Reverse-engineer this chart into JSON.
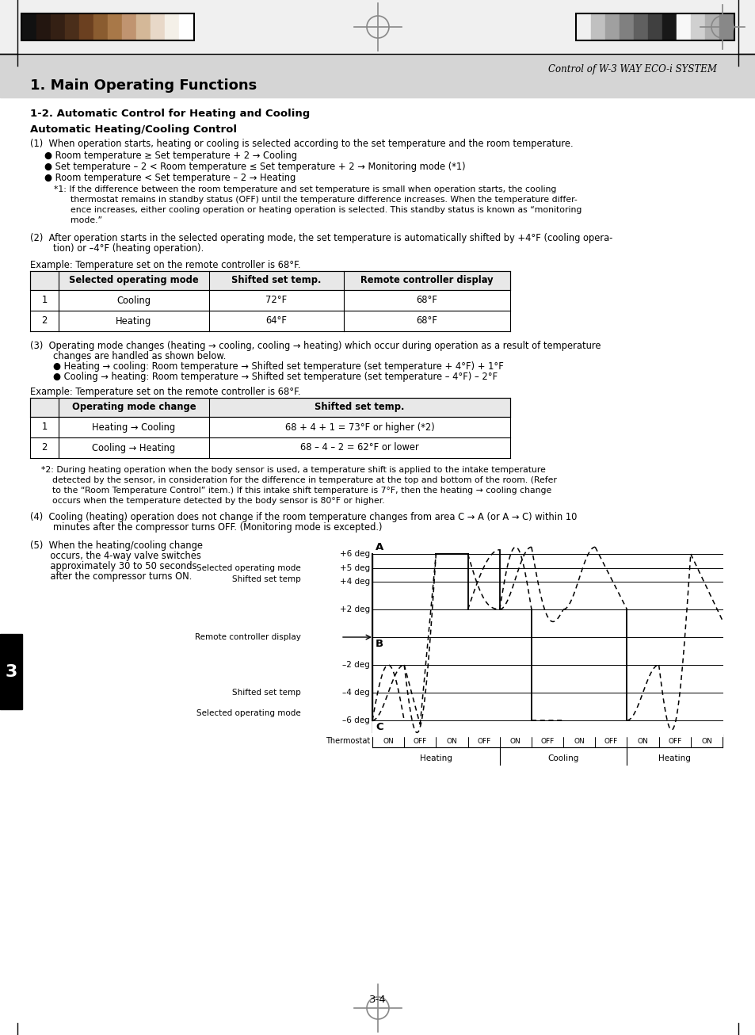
{
  "page_title": "Control of W-3 WAY ECO-i SYSTEM",
  "chapter_title": "1. Main Operating Functions",
  "section_title": "1-2. Automatic Control for Heating and Cooling",
  "subsection_title": "Automatic Heating/Cooling Control",
  "para1_header": "(1)  When operation starts, heating or cooling is selected according to the set temperature and the room temperature.",
  "bullet1": "● Room temperature ≥ Set temperature + 2 → Cooling",
  "bullet2": "● Set temperature – 2 < Room temperature ≤ Set temperature + 2 → Monitoring mode (*1)",
  "bullet3": "● Room temperature < Set temperature – 2 → Heating",
  "note1_lines": [
    "*1: If the difference between the room temperature and set temperature is small when operation starts, the cooling",
    "      thermostat remains in standby status (OFF) until the temperature difference increases. When the temperature differ-",
    "      ence increases, either cooling operation or heating operation is selected. This standby status is known as “monitoring",
    "      mode.”"
  ],
  "para2_lines": [
    "(2)  After operation starts in the selected operating mode, the set temperature is automatically shifted by +4°F (cooling opera-",
    "        tion) or –4°F (heating operation)."
  ],
  "example1": "Example: Temperature set on the remote controller is 68°F.",
  "table1_col_headers": [
    "Selected operating mode",
    "Shifted set temp.",
    "Remote controller display"
  ],
  "table1_rows": [
    [
      "1",
      "Cooling",
      "72°F",
      "68°F"
    ],
    [
      "2",
      "Heating",
      "64°F",
      "68°F"
    ]
  ],
  "para3_lines": [
    "(3)  Operating mode changes (heating → cooling, cooling → heating) which occur during operation as a result of temperature",
    "        changes are handled as shown below.",
    "        ● Heating → cooling: Room temperature → Shifted set temperature (set temperature + 4°F) + 1°F",
    "        ● Cooling → heating: Room temperature → Shifted set temperature (set temperature – 4°F) – 2°F"
  ],
  "example2": "Example: Temperature set on the remote controller is 68°F.",
  "table2_col_headers": [
    "Operating mode change",
    "Shifted set temp."
  ],
  "table2_rows": [
    [
      "1",
      "Heating → Cooling",
      "68 + 4 + 1 = 73°F or higher (*2)"
    ],
    [
      "2",
      "Cooling → Heating",
      "68 – 4 – 2 = 62°F or lower"
    ]
  ],
  "note2_lines": [
    "    *2: During heating operation when the body sensor is used, a temperature shift is applied to the intake temperature",
    "        detected by the sensor, in consideration for the difference in temperature at the top and bottom of the room. (Refer",
    "        to the “Room Temperature Control” item.) If this intake shift temperature is 7°F, then the heating → cooling change",
    "        occurs when the temperature detected by the body sensor is 80°F or higher."
  ],
  "para4_lines": [
    "(4)  Cooling (heating) operation does not change if the room temperature changes from area C → A (or A → C) within 10",
    "        minutes after the compressor turns OFF. (Monitoring mode is excepted.)"
  ],
  "para5_lines": [
    "(5)  When the heating/cooling change",
    "       occurs, the 4-way valve switches",
    "       approximately 30 to 50 seconds",
    "       after the compressor turns ON."
  ],
  "colors_left": [
    "#111111",
    "#231610",
    "#342014",
    "#4a2e1a",
    "#6b4020",
    "#8a5c30",
    "#a87848",
    "#c09470",
    "#d4b898",
    "#e8d8c8",
    "#f4f0e8",
    "#ffffff"
  ],
  "colors_right": [
    "#f0f0f0",
    "#c0c0c0",
    "#a0a0a0",
    "#808080",
    "#606060",
    "#404040",
    "#181818",
    "#f8f8f8",
    "#d0d0d0",
    "#b0b0b0",
    "#888888"
  ],
  "page_number": "3-4",
  "chapter_number": "3"
}
